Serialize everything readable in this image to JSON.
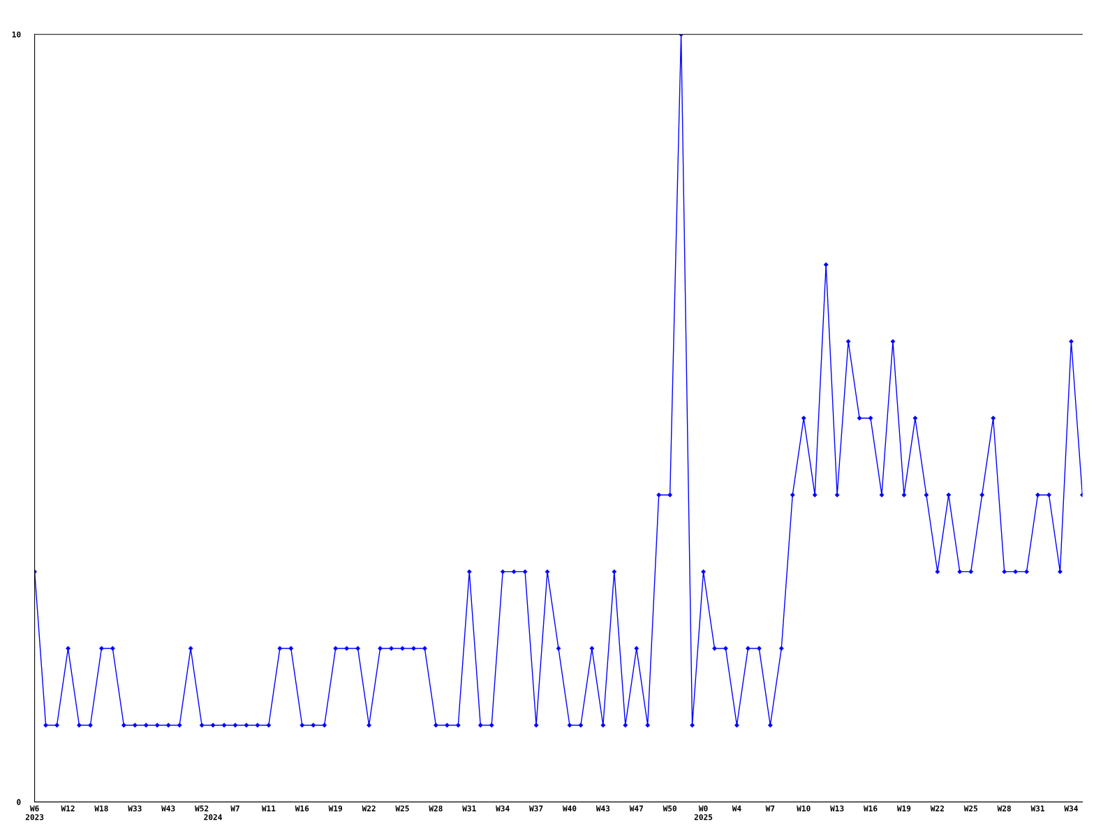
{
  "chart_data": {
    "type": "line",
    "categories": [
      "W6\n2023",
      null,
      null,
      "W12",
      null,
      null,
      "W18",
      null,
      null,
      "W33",
      null,
      null,
      "W43",
      null,
      null,
      "W52",
      "\n2024",
      null,
      "W7",
      null,
      null,
      "W11",
      null,
      null,
      "W16",
      null,
      null,
      "W19",
      null,
      null,
      "W22",
      null,
      null,
      "W25",
      null,
      null,
      "W28",
      null,
      null,
      "W31",
      null,
      null,
      "W34",
      null,
      null,
      "W37",
      null,
      null,
      "W40",
      null,
      null,
      "W43",
      null,
      null,
      "W47",
      null,
      null,
      "W50",
      null,
      null,
      "W0\n2025",
      null,
      null,
      "W4",
      null,
      null,
      "W7",
      null,
      null,
      "W10",
      null,
      null,
      "W13",
      null,
      null,
      "W16",
      null,
      null,
      "W19",
      null,
      null,
      "W22",
      null,
      null,
      "W25",
      null,
      null,
      "W28",
      null,
      null,
      "W31",
      null,
      null,
      "W34",
      null
    ],
    "series": [
      {
        "color": "#0000ff",
        "values": [
          3,
          1,
          1,
          2,
          1,
          1,
          2,
          2,
          1,
          1,
          1,
          1,
          1,
          1,
          2,
          1,
          1,
          1,
          1,
          1,
          1,
          1,
          2,
          2,
          1,
          1,
          1,
          2,
          2,
          2,
          1,
          2,
          2,
          2,
          2,
          2,
          1,
          1,
          1,
          3,
          1,
          1,
          3,
          3,
          3,
          1,
          3,
          2,
          1,
          1,
          2,
          1,
          3,
          1,
          2,
          1,
          4,
          4,
          10,
          1,
          3,
          2,
          2,
          1,
          2,
          2,
          1,
          2,
          4,
          5,
          4,
          7,
          4,
          6,
          5,
          5,
          4,
          6,
          4,
          5,
          4,
          3,
          4,
          3,
          3,
          4,
          5,
          3,
          3,
          3,
          4,
          4,
          3,
          6,
          4
        ]
      }
    ],
    "ylim": [
      0,
      10
    ],
    "yticks": [
      0,
      10
    ],
    "grid": false,
    "marker": "diamond",
    "line_style": "solid"
  }
}
